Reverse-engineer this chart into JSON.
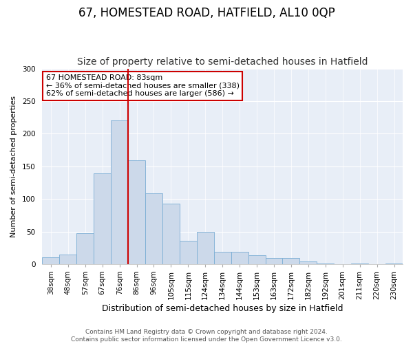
{
  "title": "67, HOMESTEAD ROAD, HATFIELD, AL10 0QP",
  "subtitle": "Size of property relative to semi-detached houses in Hatfield",
  "xlabel": "Distribution of semi-detached houses by size in Hatfield",
  "ylabel": "Number of semi-detached properties",
  "bin_labels": [
    "38sqm",
    "48sqm",
    "57sqm",
    "67sqm",
    "76sqm",
    "86sqm",
    "96sqm",
    "105sqm",
    "115sqm",
    "124sqm",
    "134sqm",
    "144sqm",
    "153sqm",
    "163sqm",
    "172sqm",
    "182sqm",
    "192sqm",
    "201sqm",
    "211sqm",
    "220sqm",
    "230sqm"
  ],
  "bar_values": [
    10,
    15,
    47,
    139,
    220,
    159,
    109,
    93,
    36,
    50,
    19,
    19,
    14,
    9,
    9,
    4,
    1,
    0,
    1,
    0,
    1
  ],
  "bar_color": "#ccd9ea",
  "bar_edge_color": "#7aadd4",
  "highlight_line_color": "#cc0000",
  "annotation_box_text_line1": "67 HOMESTEAD ROAD: 83sqm",
  "annotation_box_text_line2": "← 36% of semi-detached houses are smaller (338)",
  "annotation_box_text_line3": "62% of semi-detached houses are larger (586) →",
  "annotation_box_color": "white",
  "annotation_box_edge_color": "#cc0000",
  "ylim": [
    0,
    300
  ],
  "yticks": [
    0,
    50,
    100,
    150,
    200,
    250,
    300
  ],
  "footer_line1": "Contains HM Land Registry data © Crown copyright and database right 2024.",
  "footer_line2": "Contains public sector information licensed under the Open Government Licence v3.0.",
  "bg_color": "#e8eef7",
  "title_fontsize": 12,
  "subtitle_fontsize": 10,
  "xlabel_fontsize": 9,
  "ylabel_fontsize": 8,
  "tick_fontsize": 7.5,
  "annotation_fontsize": 8,
  "footer_fontsize": 6.5
}
